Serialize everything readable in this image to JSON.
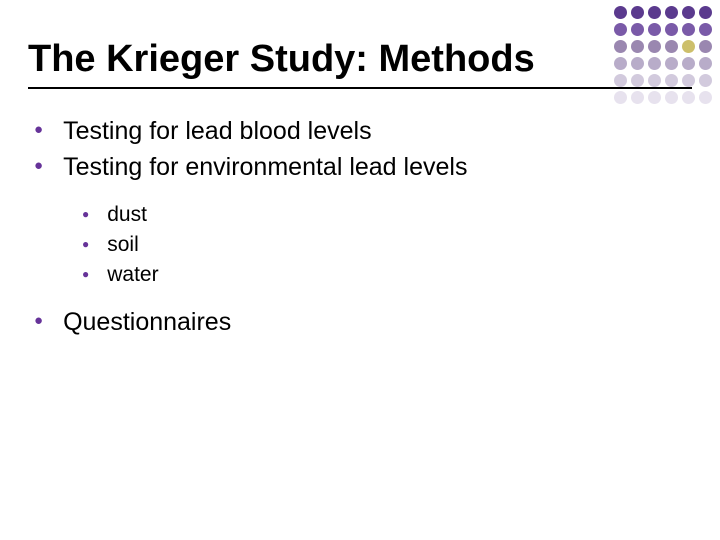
{
  "title": "The Krieger Study: Methods",
  "bullets": [
    {
      "text": "Testing for lead blood levels"
    },
    {
      "text": "Testing for environmental lead levels"
    }
  ],
  "sub_bullets": [
    {
      "text": "dust"
    },
    {
      "text": "soil"
    },
    {
      "text": "water"
    }
  ],
  "bullets_after": [
    {
      "text": "Questionnaires"
    }
  ],
  "colors": {
    "bullet": "#663399",
    "text": "#000000",
    "rule": "#000000",
    "background": "#ffffff"
  },
  "typography": {
    "title_fontsize": 38,
    "lvl1_fontsize": 25,
    "lvl2_fontsize": 21,
    "font_family": "Arial",
    "title_weight": "bold"
  },
  "dot_grid": {
    "rows": 6,
    "cols": 6,
    "dot_size": 13,
    "gap": 4,
    "colors": [
      [
        "#5b3a8e",
        "#5b3a8e",
        "#5b3a8e",
        "#5b3a8e",
        "#5b3a8e",
        "#5b3a8e"
      ],
      [
        "#7a5aa8",
        "#7a5aa8",
        "#7a5aa8",
        "#7a5aa8",
        "#7a5aa8",
        "#7a5aa8"
      ],
      [
        "#9a87b0",
        "#9a87b0",
        "#9a87b0",
        "#9a87b0",
        "#cdbf6b",
        "#9a87b0"
      ],
      [
        "#b8acc9",
        "#b8acc9",
        "#b8acc9",
        "#b8acc9",
        "#b8acc9",
        "#b8acc9"
      ],
      [
        "#d2cadd",
        "#d2cadd",
        "#d2cadd",
        "#d2cadd",
        "#d2cadd",
        "#d2cadd"
      ],
      [
        "#e7e2ee",
        "#e7e2ee",
        "#e7e2ee",
        "#e7e2ee",
        "#e7e2ee",
        "#e7e2ee"
      ]
    ]
  }
}
